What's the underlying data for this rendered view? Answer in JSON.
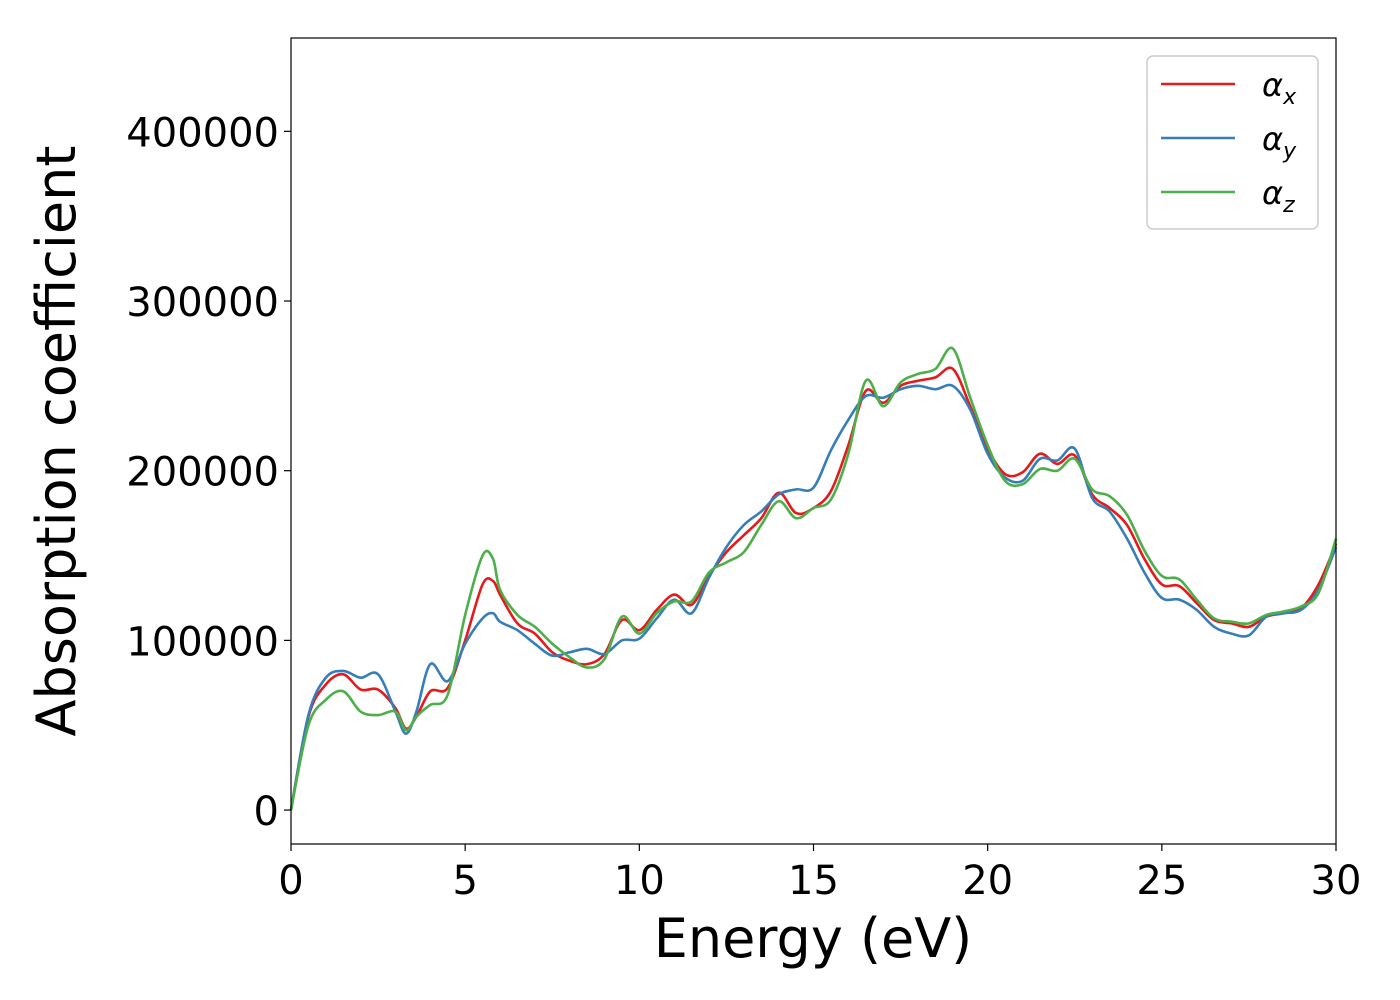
{
  "chart_data": {
    "type": "line",
    "title": "",
    "xlabel": "Energy (eV)",
    "ylabel": "Absorption coefficient",
    "xlim": [
      0,
      30
    ],
    "ylim": [
      -20000,
      455000
    ],
    "xticks": [
      0,
      5,
      10,
      15,
      20,
      25,
      30
    ],
    "xtick_labels": [
      "0",
      "5",
      "10",
      "15",
      "20",
      "25",
      "30"
    ],
    "yticks": [
      0,
      100000,
      200000,
      300000,
      400000
    ],
    "ytick_labels": [
      "0",
      "100000",
      "200000",
      "300000",
      "400000"
    ],
    "grid": false,
    "legend_position": "top-right",
    "x": [
      0,
      0.5,
      1,
      1.5,
      2,
      2.5,
      3,
      3.3,
      3.6,
      4,
      4.5,
      5,
      5.5,
      5.8,
      6,
      6.5,
      7,
      7.5,
      8,
      8.5,
      9,
      9.5,
      10,
      10.5,
      11,
      11.5,
      12,
      12.5,
      13,
      13.5,
      14,
      14.5,
      15,
      15.5,
      16,
      16.5,
      17,
      17.5,
      18,
      18.5,
      19,
      19.5,
      20,
      20.5,
      21,
      21.5,
      22,
      22.5,
      23,
      23.5,
      24,
      24.5,
      25,
      25.5,
      26,
      26.5,
      27,
      27.5,
      28,
      28.5,
      29,
      29.5,
      30
    ],
    "series": [
      {
        "name": "α",
        "subscript": "x",
        "color": "#e41a1c",
        "values": [
          0,
          55000,
          74000,
          80000,
          71000,
          71000,
          60000,
          48000,
          55000,
          70000,
          72000,
          100000,
          133000,
          135000,
          127000,
          110000,
          104000,
          93000,
          88000,
          86000,
          92000,
          112000,
          106000,
          118000,
          127000,
          121000,
          138000,
          152000,
          162000,
          172000,
          187000,
          175000,
          178000,
          188000,
          215000,
          247000,
          240000,
          250000,
          253000,
          255000,
          260000,
          238000,
          213000,
          198000,
          199000,
          210000,
          204000,
          209000,
          186000,
          178000,
          168000,
          148000,
          133000,
          132000,
          122000,
          112000,
          110000,
          108000,
          114000,
          116000,
          119000,
          133000,
          157000
        ]
      },
      {
        "name": "α",
        "subscript": "y",
        "color": "#377eb8",
        "values": [
          0,
          56000,
          78000,
          82000,
          78000,
          80000,
          58000,
          45000,
          58000,
          86000,
          76000,
          98000,
          113000,
          116000,
          111000,
          106000,
          98000,
          91000,
          93000,
          95000,
          92000,
          100000,
          101000,
          113000,
          124000,
          116000,
          137000,
          155000,
          168000,
          176000,
          186000,
          189000,
          190000,
          212000,
          230000,
          244000,
          243000,
          248000,
          250000,
          248000,
          250000,
          236000,
          210000,
          196000,
          194000,
          207000,
          206000,
          213000,
          184000,
          176000,
          160000,
          140000,
          125000,
          124000,
          118000,
          108000,
          104000,
          103000,
          114000,
          116000,
          118000,
          130000,
          155000
        ]
      },
      {
        "name": "α",
        "subscript": "z",
        "color": "#4daf4a",
        "values": [
          0,
          50000,
          65000,
          70000,
          58000,
          56000,
          58000,
          47000,
          55000,
          62000,
          68000,
          115000,
          150000,
          148000,
          130000,
          115000,
          108000,
          98000,
          90000,
          84000,
          89000,
          114000,
          104000,
          116000,
          123000,
          123000,
          140000,
          146000,
          152000,
          168000,
          182000,
          172000,
          178000,
          183000,
          210000,
          253000,
          238000,
          252000,
          257000,
          260000,
          272000,
          243000,
          215000,
          194000,
          192000,
          201000,
          200000,
          207000,
          189000,
          185000,
          174000,
          153000,
          138000,
          136000,
          124000,
          113000,
          111000,
          110000,
          115000,
          117000,
          120000,
          128000,
          160000
        ]
      }
    ]
  }
}
